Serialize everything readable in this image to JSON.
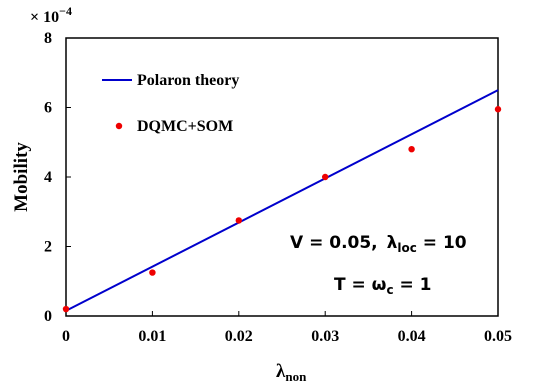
{
  "chart_data": {
    "type": "line",
    "x_ticks": [
      "0",
      "0.01",
      "0.02",
      "0.03",
      "0.04",
      "0.05"
    ],
    "y_ticks": [
      "0",
      "2",
      "4",
      "6",
      "8"
    ],
    "y_exponent": "× 10",
    "y_exponent_power": "−4",
    "xlim": [
      0,
      0.05
    ],
    "ylim": [
      0,
      8
    ],
    "y_scale": 0.0001,
    "xlabel_main": "λ",
    "xlabel_sub": "non",
    "ylabel": "Mobility",
    "grid": false,
    "legend_position": "top-left",
    "series": [
      {
        "name": "Polaron theory",
        "kind": "line",
        "color": "#0000cc",
        "x": [
          0,
          0.05
        ],
        "y": [
          0.15,
          6.5
        ]
      },
      {
        "name": "DQMC+SOM",
        "kind": "scatter",
        "color": "#ee0000",
        "x": [
          0,
          0.01,
          0.02,
          0.03,
          0.04,
          0.05
        ],
        "y": [
          0.2,
          1.25,
          2.75,
          4.0,
          4.8,
          5.95
        ]
      }
    ],
    "annotations": {
      "line1_a": "V = 0.05,",
      "line1_b": "λ",
      "line1_sub": "loc",
      "line1_c": " = 10",
      "line2_a": "T = ω",
      "line2_sub": "c",
      "line2_c": " = 1"
    }
  }
}
